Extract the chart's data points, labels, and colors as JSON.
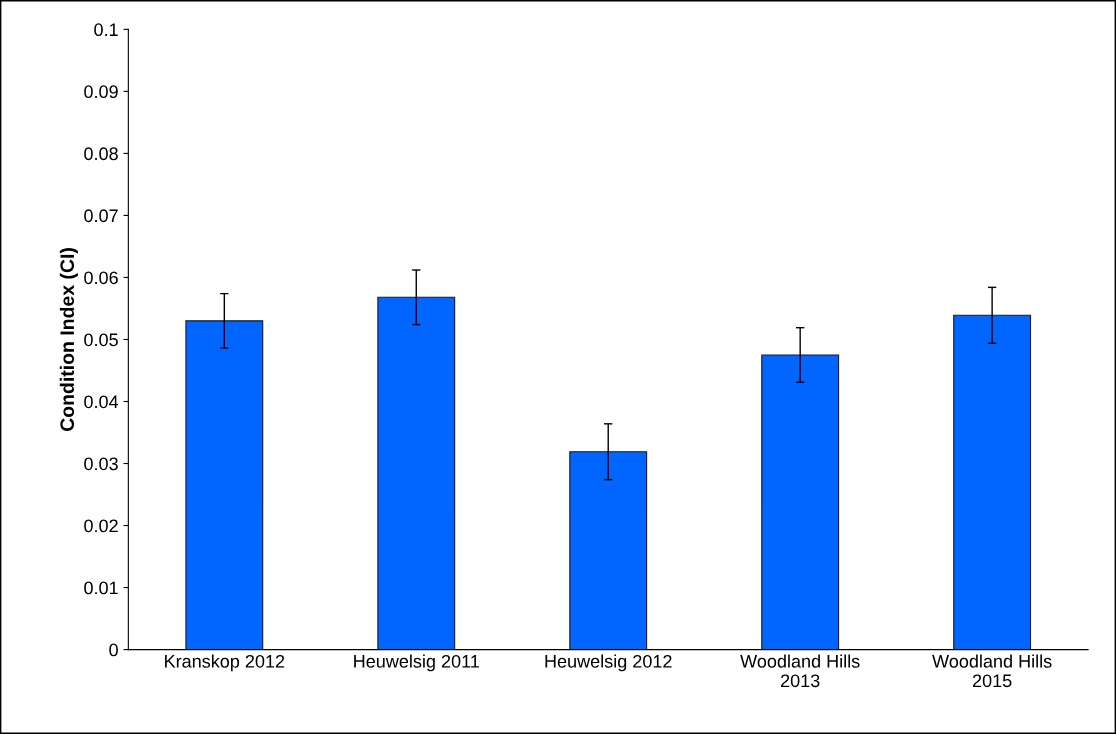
{
  "chart_data": {
    "type": "bar",
    "ylabel": "Condition Index (CI)",
    "categories": [
      "Kranskop 2012",
      "Heuwelsig 2011",
      "Heuwelsig 2012",
      "Woodland Hills\n2013",
      "Woodland Hills\n2015"
    ],
    "values": [
      0.053,
      0.0568,
      0.0319,
      0.0475,
      0.0539
    ],
    "errors": [
      0.0044,
      0.0044,
      0.0045,
      0.0044,
      0.0045
    ],
    "color": "#0066ff",
    "ylim": [
      0,
      0.1
    ],
    "yticks": [
      0,
      0.01,
      0.02,
      0.03,
      0.04,
      0.05,
      0.06,
      0.07,
      0.08,
      0.09,
      0.1
    ],
    "grid": false
  }
}
